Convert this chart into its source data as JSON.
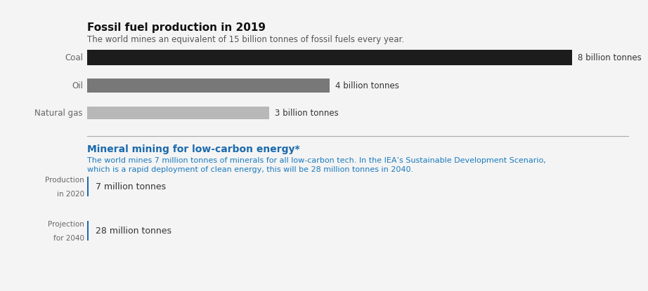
{
  "title": "Fossil fuel production in 2019",
  "subtitle": "The world mines an equivalent of 15 billion tonnes of fossil fuels every year.",
  "bars": [
    {
      "label": "Coal",
      "value": 8,
      "max_val": 8,
      "color": "#1c1c1c",
      "annotation": "8 billion tonnes"
    },
    {
      "label": "Oil",
      "value": 4,
      "max_val": 8,
      "color": "#787878",
      "annotation": "4 billion tonnes"
    },
    {
      "label": "Natural gas",
      "value": 3,
      "max_val": 8,
      "color": "#b8b8b8",
      "annotation": "3 billion tonnes"
    }
  ],
  "section2_title": "Mineral mining for low-carbon energy*",
  "section2_title_color": "#1a6aad",
  "section2_subtitle_line1": "The world mines 7 million tonnes of minerals for all low-carbon tech. In the IEA’s Sustainable Development Scenario,",
  "section2_subtitle_line2": "which is a rapid deployment of clean energy, this will be 28 million tonnes in 2040.",
  "section2_subtitle_color": "#1a7abd",
  "items": [
    {
      "label_line1": "Production",
      "label_line2": "in 2020",
      "value_text": "7 million tonnes"
    },
    {
      "label_line1": "Projection",
      "label_line2": "for 2040",
      "value_text": "28 million tonnes"
    }
  ],
  "background_color": "#f4f4f4",
  "divider_color": "#aaaaaa",
  "bar_color_border": "#999999",
  "text_label_color": "#666666",
  "annotation_color": "#333333",
  "title_color": "#111111",
  "subtitle_color": "#555555"
}
